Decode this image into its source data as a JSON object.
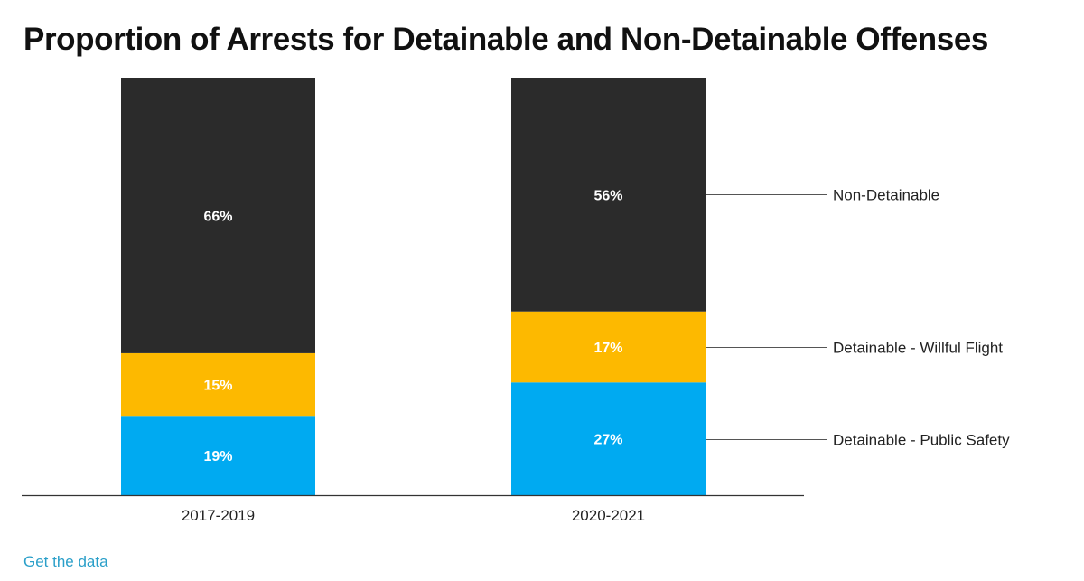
{
  "chart_data": {
    "type": "bar",
    "stacked": true,
    "title": "Proportion of Arrests for Detainable and Non-Detainable Offenses",
    "categories": [
      "2017-2019",
      "2020-2021"
    ],
    "series": [
      {
        "name": "Detainable - Public Safety",
        "values": [
          19,
          27
        ],
        "color": "#00aaf1"
      },
      {
        "name": "Detainable - Willful Flight",
        "values": [
          15,
          17
        ],
        "color": "#fdb900"
      },
      {
        "name": "Non-Detainable",
        "values": [
          66,
          56
        ],
        "color": "#2b2b2b"
      }
    ],
    "data_labels": [
      [
        "19%",
        "27%"
      ],
      [
        "15%",
        "17%"
      ],
      [
        "66%",
        "56%"
      ]
    ],
    "ylim": [
      0,
      100
    ],
    "grid": false,
    "legend": "right, labels attached to the 2020-2021 bar"
  },
  "footer": {
    "link_label": "Get the data"
  }
}
